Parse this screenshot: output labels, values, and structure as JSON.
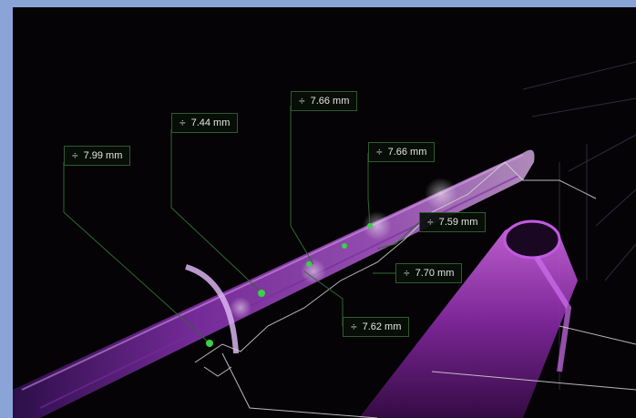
{
  "measurements": [
    {
      "id": "m1",
      "value": "7.99 mm"
    },
    {
      "id": "m2",
      "value": "7.44 mm"
    },
    {
      "id": "m3",
      "value": "7.66 mm"
    },
    {
      "id": "m4",
      "value": "7.66 mm"
    },
    {
      "id": "m5",
      "value": "7.59 mm"
    },
    {
      "id": "m6",
      "value": "7.70 mm"
    },
    {
      "id": "m7",
      "value": "7.62 mm"
    }
  ],
  "icons": {
    "measure": "thickness-measure-icon"
  },
  "colors": {
    "point_cloud": "#b24ad6",
    "marker": "#39d14a",
    "leader_line": "#2f6a2f",
    "label_bg": "#080e08"
  }
}
